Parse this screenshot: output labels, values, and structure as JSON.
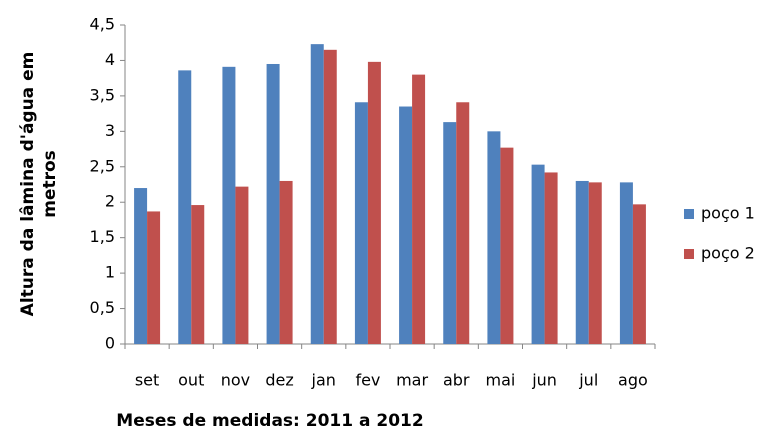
{
  "chart_data": {
    "type": "bar",
    "ylabel": [
      "Altura da lâmina d'água em",
      "metros"
    ],
    "xlabel": "Meses de medidas: 2011 a 2012",
    "categories": [
      "set",
      "out",
      "nov",
      "dez",
      "jan",
      "fev",
      "mar",
      "abr",
      "mai",
      "jun",
      "jul",
      "ago"
    ],
    "series": [
      {
        "name": "poço 1",
        "color": "#4f81bd",
        "values": [
          2.2,
          3.86,
          3.91,
          3.95,
          4.23,
          3.41,
          3.35,
          3.13,
          3.0,
          2.53,
          2.3,
          2.28
        ]
      },
      {
        "name": "poço 2",
        "color": "#c0504d",
        "values": [
          1.87,
          1.96,
          2.22,
          2.3,
          4.15,
          3.98,
          3.8,
          3.41,
          2.77,
          2.42,
          2.28,
          1.97
        ]
      }
    ],
    "ylim": [
      0,
      4.5
    ],
    "yticks": [
      0,
      {
        "value": 0.5,
        "label": "0,5"
      },
      1,
      {
        "value": 1.5,
        "label": "1,5"
      },
      2,
      {
        "value": 2.5,
        "label": "2,5"
      },
      3,
      {
        "value": 3.5,
        "label": "3,5"
      },
      4,
      {
        "value": 4.5,
        "label": "4,5"
      }
    ],
    "grid": false,
    "legend": "right"
  }
}
